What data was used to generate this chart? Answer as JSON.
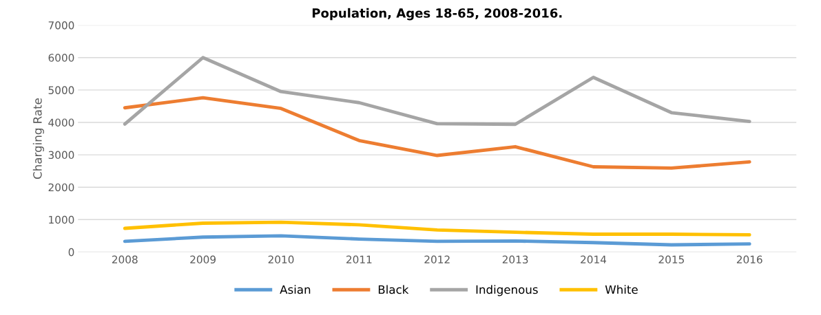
{
  "chart_data": {
    "type": "line",
    "title": "Population, Ages 18-65, 2008-2016.",
    "ylabel": "Charging Rate",
    "categories": [
      "2008",
      "2009",
      "2010",
      "2011",
      "2012",
      "2013",
      "2014",
      "2015",
      "2016"
    ],
    "series": [
      {
        "name": "Asian",
        "color": "#5b9bd5",
        "values": [
          330,
          460,
          500,
          400,
          330,
          340,
          290,
          220,
          250
        ]
      },
      {
        "name": "Black",
        "color": "#ed7d31",
        "values": [
          4450,
          4760,
          4430,
          3440,
          2980,
          3250,
          2630,
          2590,
          2780
        ]
      },
      {
        "name": "Indigenous",
        "color": "#a5a5a5",
        "values": [
          3950,
          6000,
          4950,
          4610,
          3960,
          3940,
          5390,
          4300,
          4030
        ]
      },
      {
        "name": "White",
        "color": "#ffc000",
        "values": [
          730,
          890,
          920,
          840,
          680,
          610,
          550,
          550,
          530
        ]
      }
    ],
    "ylim": [
      0,
      7000
    ],
    "yticks": [
      0,
      1000,
      2000,
      3000,
      4000,
      5000,
      6000,
      7000
    ],
    "grid": "y",
    "legend": "bottom",
    "marker": "none",
    "line_style": "solid"
  }
}
